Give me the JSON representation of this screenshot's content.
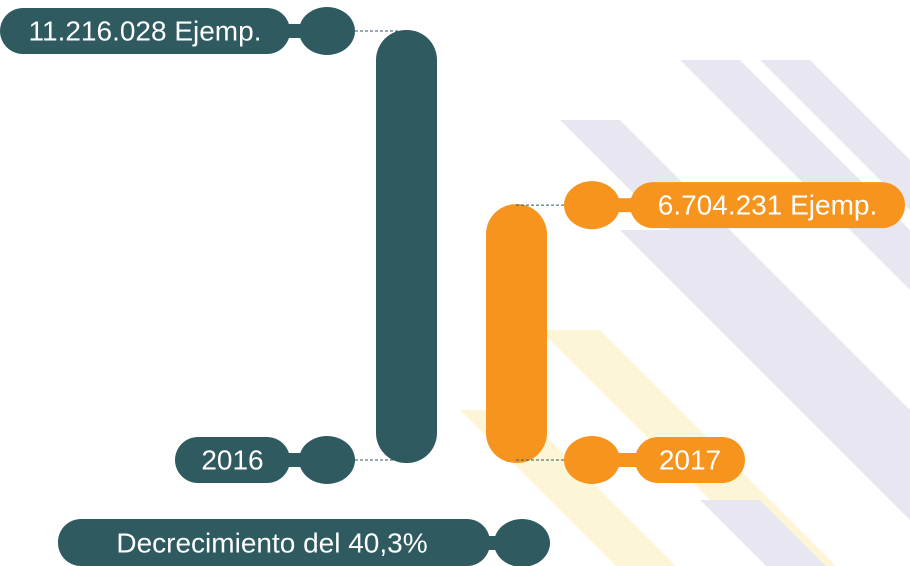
{
  "chart_data": {
    "type": "bar",
    "categories": [
      "2016",
      "2017"
    ],
    "values": [
      11216028,
      6704231
    ],
    "value_labels": [
      "11.216.028 Ejemp.",
      "6.704.231 Ejemp."
    ],
    "colors": [
      "#2f5a60",
      "#f7941d"
    ],
    "ylim": [
      0,
      11216028
    ],
    "annotation": "Decrecimiento del 40,3%"
  }
}
